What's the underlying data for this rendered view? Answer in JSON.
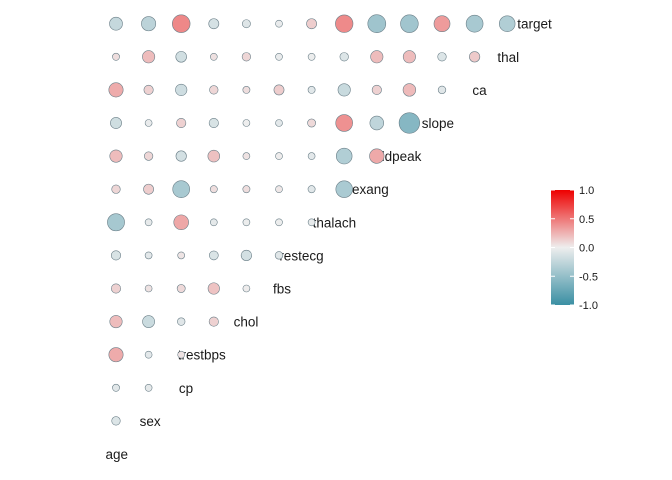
{
  "chart_data": {
    "type": "heatmap",
    "subtype": "correlation-circle-triangle",
    "variables": [
      "age",
      "sex",
      "cp",
      "trestbps",
      "chol",
      "fbs",
      "restecg",
      "thalach",
      "exang",
      "oldpeak",
      "slope",
      "ca",
      "thal",
      "target"
    ],
    "pairs_order": "for each variable i (row, bottom to top), correlations with variables 0..i-1 (left to right); the diagonal position holds the label",
    "matrix_lower": [
      [],
      [
        -0.1
      ],
      [
        -0.07,
        -0.05
      ],
      [
        0.28,
        -0.06,
        0.05
      ],
      [
        0.21,
        -0.2,
        -0.08,
        0.12
      ],
      [
        0.12,
        0.05,
        0.09,
        0.18,
        0.01
      ],
      [
        -0.12,
        -0.06,
        0.04,
        -0.11,
        -0.15,
        -0.08
      ],
      [
        -0.4,
        -0.04,
        0.3,
        -0.05,
        -0.01,
        -0.01,
        -0.04
      ],
      [
        0.1,
        0.14,
        -0.39,
        0.07,
        0.07,
        0.03,
        -0.07,
        -0.38
      ],
      [
        0.21,
        0.1,
        -0.15,
        0.19,
        0.05,
        0.01,
        -0.06,
        -0.34,
        0.29
      ],
      [
        -0.17,
        -0.03,
        0.12,
        -0.12,
        -0.0,
        -0.06,
        0.09,
        0.39,
        -0.26,
        -0.58
      ],
      [
        0.28,
        0.12,
        -0.18,
        0.1,
        0.07,
        0.14,
        -0.07,
        -0.21,
        0.12,
        0.22,
        -0.08
      ],
      [
        0.07,
        0.21,
        -0.16,
        0.06,
        0.1,
        -0.03,
        -0.01,
        -0.1,
        0.21,
        0.21,
        -0.1,
        0.15
      ],
      [
        -0.23,
        -0.28,
        0.43,
        -0.14,
        -0.09,
        -0.03,
        0.14,
        0.42,
        -0.44,
        -0.43,
        0.35,
        -0.39,
        -0.34
      ]
    ],
    "legend": {
      "position": "right",
      "ticks": [
        1.0,
        0.5,
        0.0,
        -0.5,
        -1.0
      ],
      "tick_labels": [
        "1.0",
        "0.5",
        "0.0",
        "-0.5",
        "-1.0"
      ],
      "colors": {
        "high": "#ee0000",
        "mid": "#eeeeee",
        "low": "#3a8fa3"
      }
    }
  }
}
